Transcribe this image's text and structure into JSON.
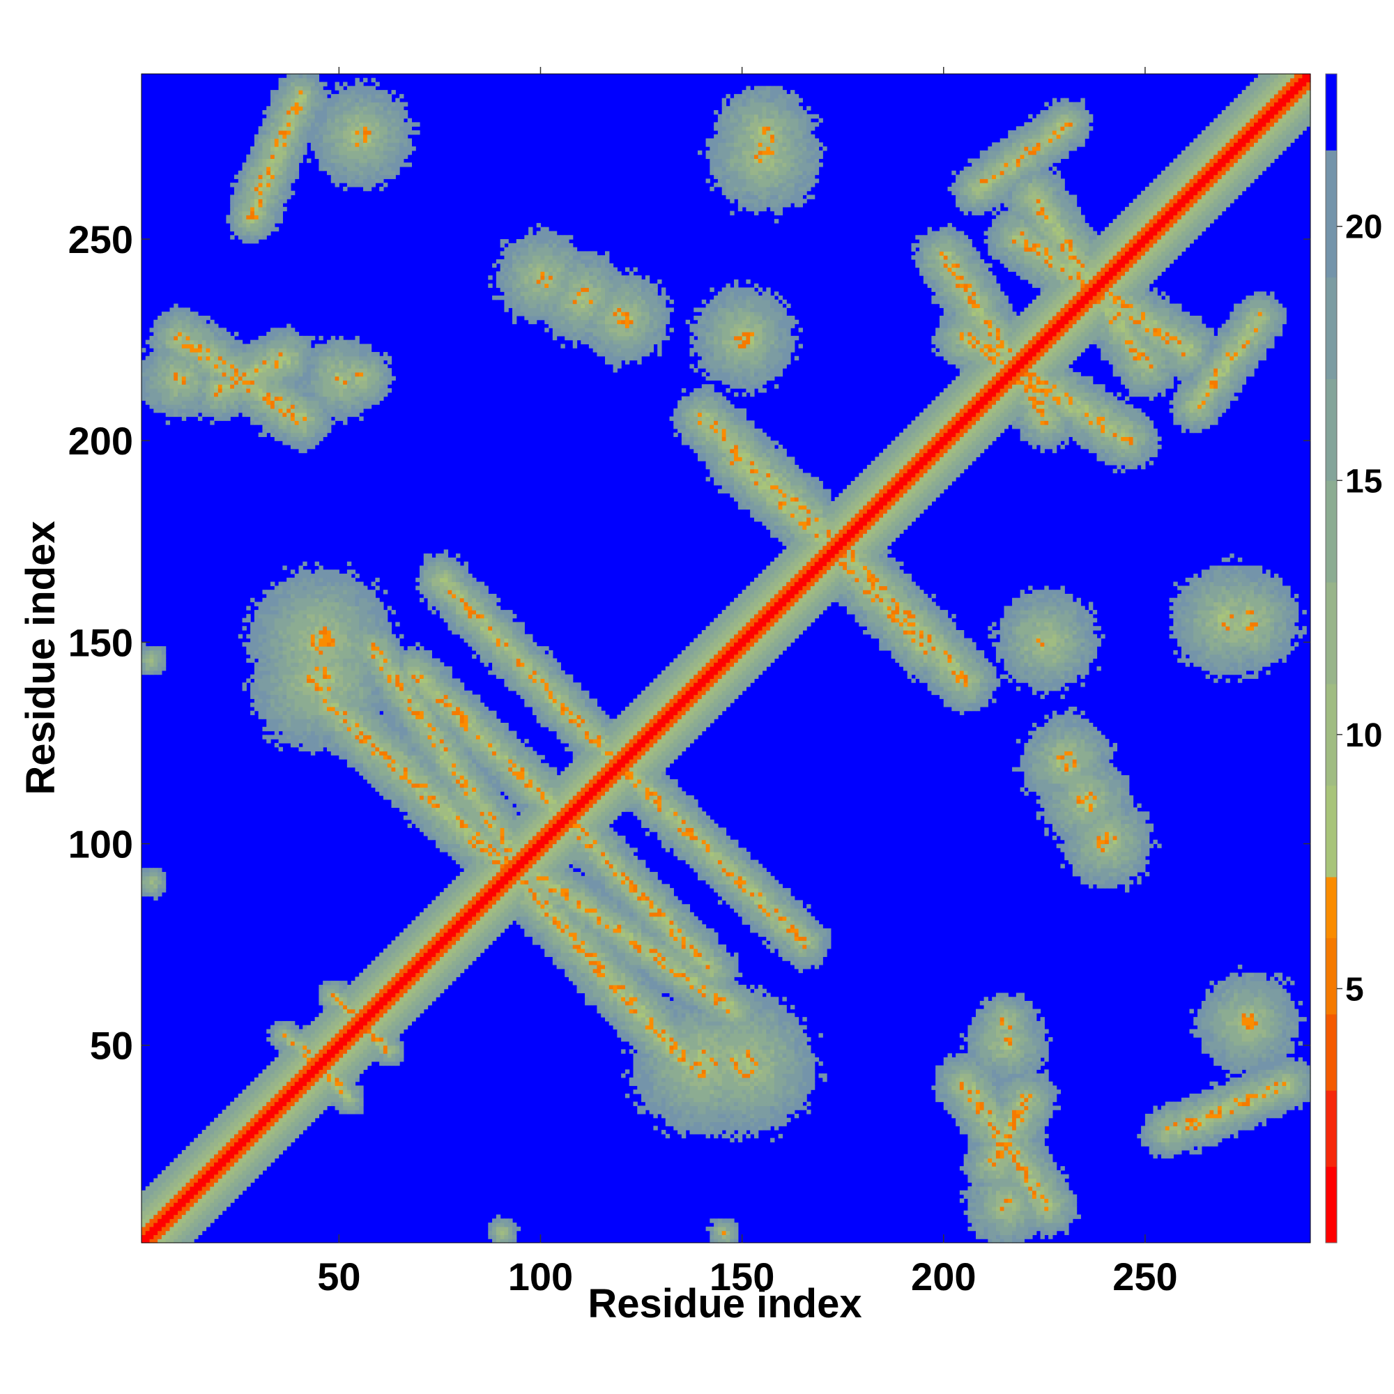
{
  "chart_data": {
    "type": "heatmap",
    "title": "",
    "xlabel": "Residue index",
    "ylabel": "Residue index",
    "n_residues": 290,
    "xlim": [
      1,
      291
    ],
    "ylim": [
      1,
      291
    ],
    "x_ticks": [
      50,
      100,
      150,
      200,
      250
    ],
    "y_ticks": [
      50,
      100,
      150,
      200,
      250
    ],
    "colorbar": {
      "ticks": [
        5,
        10,
        15,
        20
      ],
      "range": [
        0,
        23
      ],
      "levels": [
        {
          "from": 0,
          "to": 1.5,
          "color": "#ff0000"
        },
        {
          "from": 1.5,
          "to": 3.0,
          "color": "#f6280a"
        },
        {
          "from": 3.0,
          "to": 4.5,
          "color": "#f45a00"
        },
        {
          "from": 4.5,
          "to": 6.0,
          "color": "#f57a00"
        },
        {
          "from": 6.0,
          "to": 7.2,
          "color": "#fa8c00"
        },
        {
          "from": 7.2,
          "to": 9.0,
          "color": "#a8c47a"
        },
        {
          "from": 9.0,
          "to": 11.0,
          "color": "#a0bc82"
        },
        {
          "from": 11.0,
          "to": 13.0,
          "color": "#98b48a"
        },
        {
          "from": 13.0,
          "to": 15.0,
          "color": "#8cac92"
        },
        {
          "from": 15.0,
          "to": 17.0,
          "color": "#84a49a"
        },
        {
          "from": 17.0,
          "to": 19.0,
          "color": "#7c9ca2"
        },
        {
          "from": 19.0,
          "to": 21.5,
          "color": "#7494aa"
        },
        {
          "from": 21.5,
          "to": 23,
          "color": "#0000ff"
        }
      ]
    },
    "background_color": "#0000ff",
    "note_values": "distance map: diagonal minimum (red), contact features green/orange, non-contacts blue",
    "features": [
      {
        "kind": "diagonal"
      },
      {
        "kind": "band",
        "x1": 50,
        "y1": 60,
        "x2": 62,
        "y2": 48,
        "width": 3
      },
      {
        "kind": "band",
        "x1": 40,
        "y1": 50,
        "x2": 52,
        "y2": 36,
        "width": 3
      },
      {
        "kind": "band",
        "x1": 58,
        "y1": 148,
        "x2": 92,
        "y2": 98,
        "width": 5
      },
      {
        "kind": "band",
        "x1": 90,
        "y1": 95,
        "x2": 135,
        "y2": 46,
        "width": 6
      },
      {
        "kind": "band",
        "x1": 68,
        "y1": 142,
        "x2": 110,
        "y2": 102,
        "width": 5
      },
      {
        "kind": "band",
        "x1": 118,
        "y1": 120,
        "x2": 165,
        "y2": 75,
        "width": 5
      },
      {
        "kind": "band",
        "x1": 148,
        "y1": 195,
        "x2": 175,
        "y2": 170,
        "width": 6
      },
      {
        "kind": "band",
        "x1": 175,
        "y1": 172,
        "x2": 205,
        "y2": 140,
        "width": 6
      },
      {
        "kind": "band",
        "x1": 205,
        "y1": 225,
        "x2": 245,
        "y2": 200,
        "width": 6
      },
      {
        "kind": "band",
        "x1": 218,
        "y1": 250,
        "x2": 260,
        "y2": 222,
        "width": 6
      },
      {
        "kind": "band",
        "x1": 208,
        "y1": 262,
        "x2": 230,
        "y2": 278,
        "width": 5
      },
      {
        "kind": "band",
        "x1": 262,
        "y1": 30,
        "x2": 285,
        "y2": 40,
        "width": 5
      },
      {
        "kind": "band",
        "x1": 205,
        "y1": 40,
        "x2": 225,
        "y2": 10,
        "width": 6
      },
      {
        "kind": "band",
        "x1": 20,
        "y1": 212,
        "x2": 36,
        "y2": 220,
        "width": 6
      },
      {
        "kind": "band",
        "x1": 28,
        "y1": 255,
        "x2": 40,
        "y2": 285,
        "width": 5
      },
      {
        "kind": "blob",
        "cx": 45,
        "cy": 150,
        "r": 14
      },
      {
        "kind": "blob",
        "cx": 140,
        "cy": 45,
        "r": 14
      },
      {
        "kind": "blob",
        "cx": 110,
        "cy": 235,
        "r": 9
      },
      {
        "kind": "blob",
        "cx": 150,
        "cy": 225,
        "r": 10
      },
      {
        "kind": "blob",
        "cx": 155,
        "cy": 270,
        "r": 11
      },
      {
        "kind": "blob",
        "cx": 240,
        "cy": 100,
        "r": 9
      },
      {
        "kind": "blob",
        "cx": 230,
        "cy": 120,
        "r": 9
      },
      {
        "kind": "blob",
        "cx": 275,
        "cy": 155,
        "r": 10
      },
      {
        "kind": "blob",
        "cx": 275,
        "cy": 55,
        "r": 10
      },
      {
        "kind": "blob",
        "cx": 50,
        "cy": 215,
        "r": 8
      },
      {
        "kind": "blob",
        "cx": 10,
        "cy": 215,
        "r": 8
      },
      {
        "kind": "blob",
        "cx": 215,
        "cy": 55,
        "r": 6
      },
      {
        "kind": "blob",
        "cx": 3,
        "cy": 90,
        "r": 3
      },
      {
        "kind": "blob",
        "cx": 3,
        "cy": 145,
        "r": 3
      },
      {
        "kind": "blob",
        "cx": 90,
        "cy": 3,
        "r": 3
      },
      {
        "kind": "blob",
        "cx": 145,
        "cy": 3,
        "r": 3
      }
    ]
  }
}
